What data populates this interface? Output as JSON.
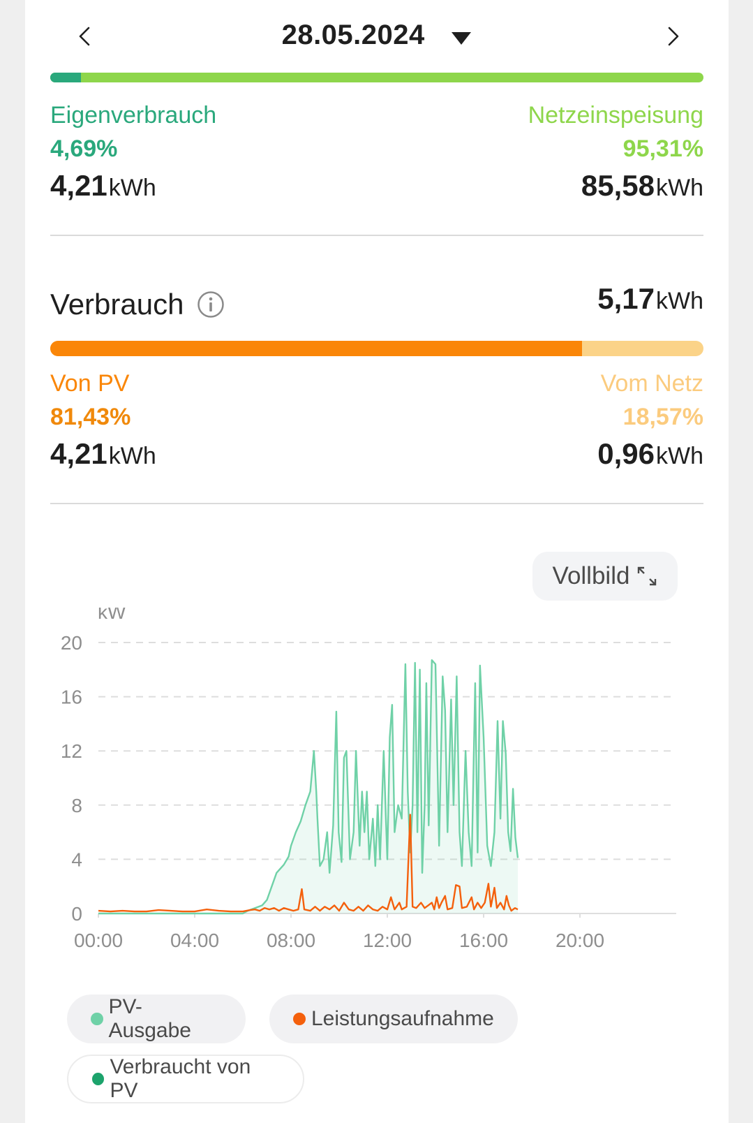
{
  "header": {
    "date": "28.05.2024"
  },
  "production": {
    "self_use_fraction": 0.0469,
    "left": {
      "label": "Eigenverbrauch",
      "percent": "4,69%",
      "value": "4,21",
      "unit": "kWh"
    },
    "right": {
      "label": "Netzeinspeisung",
      "percent": "95,31%",
      "value": "85,58",
      "unit": "kWh"
    }
  },
  "consumption": {
    "title": "Verbrauch",
    "total_value": "5,17",
    "total_unit": "kWh",
    "pv_fraction": 0.8143,
    "left": {
      "label": "Von PV",
      "percent": "81,43%",
      "value": "4,21",
      "unit": "kWh"
    },
    "right": {
      "label": "Vom Netz",
      "percent": "18,57%",
      "value": "0,96",
      "unit": "kWh"
    }
  },
  "fullscreen_button": {
    "label": "Vollbild"
  },
  "legend": [
    {
      "label": "PV-Ausgabe",
      "color": "#6fd1a7"
    },
    {
      "label": "Leistungsaufnahme",
      "color": "#f4600c"
    },
    {
      "label": "Verbraucht von PV",
      "color": "#1ca36c"
    }
  ],
  "colors": {
    "self_use": "#2aa87c",
    "feed_in": "#8ed64b",
    "from_pv": "#fa8608",
    "from_grid": "#fbd388"
  },
  "chart_data": {
    "type": "line",
    "ylabel": "kW",
    "ylim": [
      0,
      20
    ],
    "yticks": [
      "0",
      "4",
      "8",
      "12",
      "16",
      "20"
    ],
    "xlim": [
      0,
      24
    ],
    "xticks": [
      "00:00",
      "04:00",
      "08:00",
      "12:00",
      "16:00",
      "20:00"
    ],
    "grid": true,
    "series": [
      {
        "name": "PV-Ausgabe",
        "color": "#6fd1a7",
        "area": true,
        "points": [
          [
            0,
            0
          ],
          [
            6,
            0
          ],
          [
            6.2,
            0.2
          ],
          [
            6.5,
            0.4
          ],
          [
            6.8,
            0.6
          ],
          [
            7,
            1
          ],
          [
            7.2,
            2
          ],
          [
            7.4,
            3
          ],
          [
            7.7,
            3.6
          ],
          [
            7.9,
            4.2
          ],
          [
            8,
            5
          ],
          [
            8.2,
            6
          ],
          [
            8.4,
            6.8
          ],
          [
            8.6,
            8
          ],
          [
            8.8,
            9
          ],
          [
            8.95,
            12
          ],
          [
            9.05,
            9
          ],
          [
            9.1,
            7
          ],
          [
            9.2,
            3.5
          ],
          [
            9.35,
            4
          ],
          [
            9.5,
            6
          ],
          [
            9.6,
            3
          ],
          [
            9.75,
            6.5
          ],
          [
            9.88,
            14.9
          ],
          [
            9.98,
            6
          ],
          [
            10.1,
            3.8
          ],
          [
            10.2,
            11.5
          ],
          [
            10.3,
            12
          ],
          [
            10.45,
            4
          ],
          [
            10.6,
            6
          ],
          [
            10.7,
            12
          ],
          [
            10.85,
            5
          ],
          [
            10.95,
            9
          ],
          [
            11.05,
            6
          ],
          [
            11.15,
            9
          ],
          [
            11.25,
            4
          ],
          [
            11.4,
            7
          ],
          [
            11.5,
            3.5
          ],
          [
            11.6,
            8
          ],
          [
            11.7,
            4
          ],
          [
            11.85,
            12
          ],
          [
            11.95,
            6.5
          ],
          [
            12,
            4
          ],
          [
            12.1,
            13
          ],
          [
            12.2,
            15.4
          ],
          [
            12.3,
            6
          ],
          [
            12.45,
            8
          ],
          [
            12.6,
            7
          ],
          [
            12.75,
            18.4
          ],
          [
            12.85,
            9
          ],
          [
            12.95,
            4.5
          ],
          [
            13.05,
            8
          ],
          [
            13.15,
            18.5
          ],
          [
            13.25,
            6
          ],
          [
            13.35,
            18
          ],
          [
            13.45,
            3
          ],
          [
            13.55,
            8
          ],
          [
            13.62,
            17
          ],
          [
            13.72,
            6.5
          ],
          [
            13.85,
            18.7
          ],
          [
            14,
            18.4
          ],
          [
            14.15,
            5
          ],
          [
            14.3,
            17.5
          ],
          [
            14.4,
            15
          ],
          [
            14.5,
            6
          ],
          [
            14.65,
            15.8
          ],
          [
            14.75,
            8
          ],
          [
            14.88,
            17.5
          ],
          [
            15,
            6
          ],
          [
            15.1,
            3.5
          ],
          [
            15.25,
            12
          ],
          [
            15.38,
            6
          ],
          [
            15.5,
            3.5
          ],
          [
            15.65,
            17
          ],
          [
            15.75,
            4.5
          ],
          [
            15.85,
            18.3
          ],
          [
            16,
            13
          ],
          [
            16.15,
            5
          ],
          [
            16.3,
            3.5
          ],
          [
            16.45,
            6
          ],
          [
            16.58,
            14.2
          ],
          [
            16.7,
            7
          ],
          [
            16.8,
            14.2
          ],
          [
            16.92,
            11.8
          ],
          [
            17.02,
            6
          ],
          [
            17.12,
            4.6
          ],
          [
            17.22,
            9.2
          ],
          [
            17.32,
            5.6
          ],
          [
            17.42,
            4.1
          ]
        ]
      },
      {
        "name": "Leistungsaufnahme",
        "color": "#f4600c",
        "area": false,
        "points": [
          [
            0,
            0.2
          ],
          [
            0.5,
            0.15
          ],
          [
            1,
            0.2
          ],
          [
            1.5,
            0.15
          ],
          [
            2,
            0.15
          ],
          [
            2.5,
            0.25
          ],
          [
            3,
            0.2
          ],
          [
            3.5,
            0.15
          ],
          [
            4,
            0.15
          ],
          [
            4.5,
            0.3
          ],
          [
            5,
            0.2
          ],
          [
            5.5,
            0.15
          ],
          [
            6,
            0.15
          ],
          [
            6.3,
            0.25
          ],
          [
            6.5,
            0.3
          ],
          [
            6.7,
            0.2
          ],
          [
            6.9,
            0.4
          ],
          [
            7.1,
            0.3
          ],
          [
            7.3,
            0.4
          ],
          [
            7.5,
            0.2
          ],
          [
            7.7,
            0.4
          ],
          [
            7.9,
            0.3
          ],
          [
            8.1,
            0.2
          ],
          [
            8.3,
            0.3
          ],
          [
            8.45,
            1.8
          ],
          [
            8.55,
            0.3
          ],
          [
            8.8,
            0.2
          ],
          [
            9,
            0.5
          ],
          [
            9.2,
            0.2
          ],
          [
            9.4,
            0.5
          ],
          [
            9.6,
            0.3
          ],
          [
            9.8,
            0.6
          ],
          [
            10,
            0.2
          ],
          [
            10.2,
            0.8
          ],
          [
            10.4,
            0.3
          ],
          [
            10.6,
            0.2
          ],
          [
            10.8,
            0.5
          ],
          [
            11,
            0.2
          ],
          [
            11.2,
            0.6
          ],
          [
            11.4,
            0.3
          ],
          [
            11.6,
            0.2
          ],
          [
            11.8,
            0.5
          ],
          [
            12,
            0.3
          ],
          [
            12.15,
            1.2
          ],
          [
            12.3,
            0.3
          ],
          [
            12.5,
            0.8
          ],
          [
            12.6,
            0.3
          ],
          [
            12.8,
            0.5
          ],
          [
            12.95,
            7.3
          ],
          [
            13.05,
            0.5
          ],
          [
            13.2,
            0.4
          ],
          [
            13.4,
            0.8
          ],
          [
            13.55,
            0.4
          ],
          [
            13.7,
            0.6
          ],
          [
            13.85,
            0.8
          ],
          [
            13.95,
            0.3
          ],
          [
            14.05,
            1.2
          ],
          [
            14.15,
            0.4
          ],
          [
            14.25,
            0.8
          ],
          [
            14.4,
            1.3
          ],
          [
            14.5,
            0.3
          ],
          [
            14.7,
            0.4
          ],
          [
            14.85,
            2.1
          ],
          [
            15,
            2
          ],
          [
            15.1,
            0.4
          ],
          [
            15.3,
            0.5
          ],
          [
            15.5,
            1.2
          ],
          [
            15.6,
            0.3
          ],
          [
            15.75,
            0.8
          ],
          [
            15.9,
            0.4
          ],
          [
            16.05,
            0.8
          ],
          [
            16.2,
            2.2
          ],
          [
            16.3,
            0.5
          ],
          [
            16.45,
            1.9
          ],
          [
            16.55,
            0.4
          ],
          [
            16.7,
            0.8
          ],
          [
            16.85,
            0.3
          ],
          [
            16.95,
            1.3
          ],
          [
            17.05,
            0.6
          ],
          [
            17.15,
            0.2
          ],
          [
            17.3,
            0.4
          ],
          [
            17.42,
            0.3
          ]
        ]
      }
    ]
  }
}
